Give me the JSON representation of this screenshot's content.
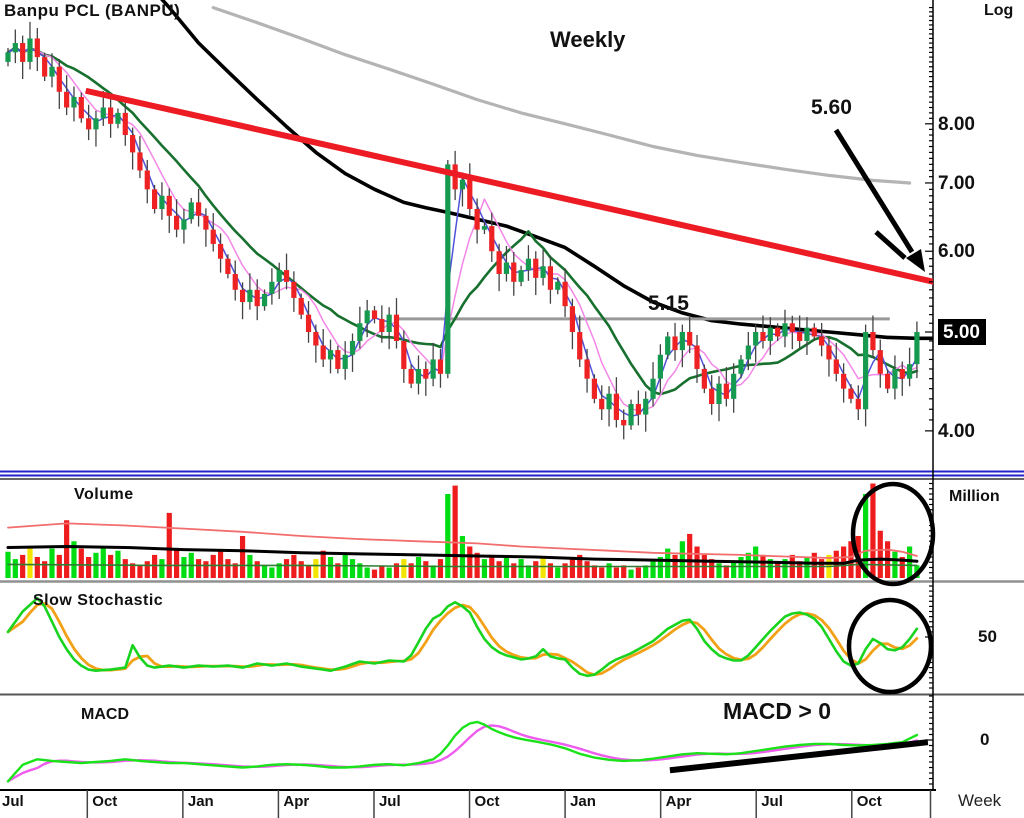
{
  "page": {
    "title": "Banpu  PCL  (BANPU)",
    "timeframe_label": "Weekly",
    "scale_label": "Log",
    "x_axis_unit": "Week"
  },
  "annotations": {
    "resistance_price": "5.60",
    "breakout_level": "5.15",
    "macd_note": "MACD > 0"
  },
  "panels": {
    "volume": {
      "label": "Volume",
      "unit": "Million"
    },
    "stochastic": {
      "label": "Slow  Stochastic",
      "mid_level": "50"
    },
    "macd": {
      "label": "MACD",
      "zero": "0"
    }
  },
  "x_axis": {
    "labels": [
      "Jul",
      "Oct",
      "Jan",
      "Apr",
      "Jul",
      "Oct",
      "Jan",
      "Apr",
      "Jul",
      "Oct"
    ],
    "unit": "Week",
    "weeks_per_quarter": 13
  },
  "colors": {
    "candle_up": "#169a4f",
    "candle_down": "#ee2222",
    "wick": "#444444",
    "vol_up": "#00dd12",
    "vol_down": "#ee1c1c",
    "vol_flat": "#f2e500",
    "ma_short": "#4f52d9",
    "ma_medium": "#f486e8",
    "ma_long": "#17702e",
    "ma_40w": "#000000",
    "ma_200w": "#b4b4b4",
    "trendline": "#ed1c24",
    "level_line": "#999999",
    "stoch_k": "#19d41f",
    "stoch_d": "#f2a117",
    "macd_line": "#1ae31a",
    "macd_signal": "#ee5bee",
    "separator_blue": "#2121c8"
  },
  "chart_data": [
    {
      "type": "candlestick",
      "title": "Banpu PCL (BANPU)",
      "timeframe": "Weekly",
      "y_axis": {
        "scale": "log",
        "tick_values": [
          8,
          7,
          6,
          5,
          4
        ],
        "tick_labels": [
          "8.00",
          "7.00",
          "6.00",
          "5.00",
          "4.00"
        ],
        "highlighted_label": "5.00",
        "unit_label": "Log"
      },
      "first_open": 9.2,
      "weekly_closes": [
        9.4,
        9.6,
        9.2,
        9.7,
        9.3,
        8.9,
        9.1,
        8.6,
        8.3,
        8.5,
        8.1,
        7.9,
        8.1,
        8.3,
        8.0,
        8.2,
        7.8,
        7.5,
        7.2,
        6.9,
        6.6,
        6.8,
        6.5,
        6.3,
        6.45,
        6.7,
        6.5,
        6.3,
        6.1,
        5.9,
        5.7,
        5.5,
        5.35,
        5.5,
        5.3,
        5.45,
        5.6,
        5.75,
        5.6,
        5.4,
        5.2,
        5.0,
        4.85,
        4.7,
        4.8,
        4.6,
        4.75,
        4.9,
        5.1,
        5.25,
        5.15,
        5.0,
        5.2,
        4.9,
        4.6,
        4.45,
        4.6,
        4.5,
        4.7,
        4.55,
        7.3,
        6.9,
        7.05,
        6.6,
        6.3,
        6.35,
        6.0,
        5.7,
        5.85,
        5.6,
        5.75,
        5.9,
        5.65,
        5.8,
        5.5,
        5.6,
        5.3,
        5.0,
        4.7,
        4.5,
        4.3,
        4.2,
        4.35,
        4.1,
        4.05,
        4.25,
        4.15,
        4.3,
        4.5,
        4.75,
        4.95,
        4.8,
        5.0,
        4.85,
        4.6,
        4.4,
        4.25,
        4.45,
        4.3,
        4.55,
        4.7,
        4.85,
        5.0,
        4.9,
        5.05,
        4.95,
        5.1,
        5.0,
        4.9,
        5.05,
        4.95,
        4.85,
        4.7,
        4.55,
        4.4,
        4.3,
        4.2,
        5.0,
        4.8,
        4.55,
        4.4,
        4.6,
        4.5,
        4.65,
        5.0
      ],
      "overlays": {
        "short_ma_period": 3,
        "medium_ma_period": 6,
        "long_ma_period": 12,
        "ma_black_40w": [
          [
            18,
            11.2
          ],
          [
            22,
            10.4
          ],
          [
            26,
            9.6
          ],
          [
            30,
            9.0
          ],
          [
            34,
            8.45
          ],
          [
            38,
            7.95
          ],
          [
            42,
            7.5
          ],
          [
            46,
            7.15
          ],
          [
            50,
            6.9
          ],
          [
            54,
            6.7
          ],
          [
            57,
            6.62
          ],
          [
            60,
            6.55
          ],
          [
            64,
            6.45
          ],
          [
            68,
            6.35
          ],
          [
            72,
            6.2
          ],
          [
            76,
            6.05
          ],
          [
            80,
            5.8
          ],
          [
            84,
            5.55
          ],
          [
            88,
            5.35
          ],
          [
            92,
            5.22
          ],
          [
            96,
            5.13
          ],
          [
            100,
            5.09
          ],
          [
            104,
            5.06
          ],
          [
            108,
            5.03
          ],
          [
            112,
            5.0
          ],
          [
            116,
            4.97
          ],
          [
            120,
            4.94
          ],
          [
            124,
            4.93
          ],
          [
            126,
            4.93
          ]
        ],
        "ma_gray_200w": [
          [
            28,
            10.4
          ],
          [
            34,
            10.05
          ],
          [
            40,
            9.7
          ],
          [
            46,
            9.35
          ],
          [
            52,
            9.05
          ],
          [
            58,
            8.75
          ],
          [
            64,
            8.45
          ],
          [
            70,
            8.2
          ],
          [
            76,
            8.0
          ],
          [
            82,
            7.8
          ],
          [
            88,
            7.6
          ],
          [
            94,
            7.45
          ],
          [
            100,
            7.33
          ],
          [
            106,
            7.22
          ],
          [
            112,
            7.12
          ],
          [
            118,
            7.04
          ],
          [
            123,
            7.0
          ]
        ],
        "downtrend_line": {
          "from_week": 10.6,
          "from_price": 8.62,
          "to_week": 126.3,
          "to_price": 5.6,
          "label": "5.60"
        },
        "horizontal_line": {
          "price": 5.15,
          "from_week": 52.8,
          "to_week": 120.3,
          "label": "5.15"
        }
      }
    },
    {
      "type": "bar",
      "title": "Volume",
      "unit": "Million",
      "values": [
        25,
        18,
        22,
        30,
        20,
        16,
        28,
        22,
        55,
        35,
        28,
        20,
        24,
        30,
        22,
        26,
        18,
        14,
        12,
        16,
        22,
        18,
        62,
        28,
        20,
        24,
        18,
        16,
        22,
        26,
        18,
        14,
        40,
        22,
        16,
        12,
        10,
        14,
        18,
        22,
        16,
        12,
        18,
        26,
        20,
        14,
        24,
        18,
        14,
        10,
        8,
        12,
        10,
        14,
        18,
        14,
        20,
        16,
        12,
        18,
        80,
        88,
        40,
        30,
        24,
        18,
        22,
        16,
        20,
        14,
        18,
        12,
        16,
        20,
        14,
        10,
        14,
        18,
        22,
        16,
        12,
        10,
        14,
        10,
        12,
        8,
        10,
        12,
        16,
        20,
        28,
        22,
        35,
        42,
        30,
        22,
        18,
        14,
        12,
        16,
        20,
        24,
        30,
        22,
        18,
        14,
        18,
        22,
        16,
        20,
        24,
        18,
        22,
        26,
        30,
        35,
        40,
        80,
        90,
        45,
        35,
        25,
        20,
        30,
        12
      ],
      "yellow_weeks": [
        3,
        42,
        54,
        73,
        112
      ],
      "ma_fast_red": [
        [
          0,
          48
        ],
        [
          8,
          52
        ],
        [
          16,
          50
        ],
        [
          24,
          47
        ],
        [
          32,
          44
        ],
        [
          40,
          40
        ],
        [
          48,
          37
        ],
        [
          56,
          35
        ],
        [
          60,
          34
        ],
        [
          64,
          33
        ],
        [
          70,
          30
        ],
        [
          76,
          28
        ],
        [
          82,
          26
        ],
        [
          88,
          24
        ],
        [
          94,
          23
        ],
        [
          100,
          22
        ],
        [
          104,
          21
        ],
        [
          108,
          20
        ],
        [
          112,
          19
        ],
        [
          115,
          20
        ],
        [
          117,
          26
        ],
        [
          120,
          27
        ],
        [
          122,
          25
        ],
        [
          124,
          21
        ]
      ],
      "ma_slow_black": [
        [
          0,
          29
        ],
        [
          8,
          30
        ],
        [
          16,
          29
        ],
        [
          24,
          27
        ],
        [
          32,
          26
        ],
        [
          40,
          24
        ],
        [
          48,
          23
        ],
        [
          56,
          22
        ],
        [
          64,
          21
        ],
        [
          72,
          20
        ],
        [
          80,
          18
        ],
        [
          88,
          17
        ],
        [
          96,
          16
        ],
        [
          104,
          15
        ],
        [
          110,
          14
        ],
        [
          114,
          14
        ],
        [
          116,
          17
        ],
        [
          119,
          18
        ],
        [
          122,
          17
        ],
        [
          124,
          16
        ]
      ],
      "ma_green": [
        [
          0,
          13
        ],
        [
          20,
          12
        ],
        [
          40,
          12
        ],
        [
          60,
          11
        ],
        [
          80,
          11
        ],
        [
          100,
          11
        ],
        [
          112,
          11
        ],
        [
          116,
          13
        ],
        [
          124,
          12
        ]
      ]
    },
    {
      "type": "line",
      "title": "Slow Stochastic",
      "axis_mid_label": "50",
      "k_points": [
        [
          0,
          55
        ],
        [
          2,
          75
        ],
        [
          4,
          88
        ],
        [
          5,
          80
        ],
        [
          6,
          65
        ],
        [
          7,
          50
        ],
        [
          8,
          38
        ],
        [
          9,
          28
        ],
        [
          10,
          22
        ],
        [
          11,
          18
        ],
        [
          12,
          17
        ],
        [
          14,
          18
        ],
        [
          16,
          20
        ],
        [
          17,
          42
        ],
        [
          18,
          30
        ],
        [
          19,
          22
        ],
        [
          20,
          20
        ],
        [
          22,
          22
        ],
        [
          24,
          20
        ],
        [
          26,
          22
        ],
        [
          28,
          21
        ],
        [
          30,
          22
        ],
        [
          32,
          20
        ],
        [
          34,
          24
        ],
        [
          36,
          22
        ],
        [
          38,
          24
        ],
        [
          40,
          21
        ],
        [
          42,
          19
        ],
        [
          44,
          17
        ],
        [
          46,
          21
        ],
        [
          48,
          26
        ],
        [
          50,
          24
        ],
        [
          52,
          27
        ],
        [
          54,
          26
        ],
        [
          55,
          32
        ],
        [
          56,
          45
        ],
        [
          57,
          58
        ],
        [
          58,
          68
        ],
        [
          59,
          72
        ],
        [
          60,
          80
        ],
        [
          61,
          84
        ],
        [
          62,
          80
        ],
        [
          63,
          74
        ],
        [
          64,
          60
        ],
        [
          65,
          48
        ],
        [
          66,
          40
        ],
        [
          67,
          35
        ],
        [
          68,
          32
        ],
        [
          69,
          30
        ],
        [
          70,
          28
        ],
        [
          71,
          29
        ],
        [
          72,
          31
        ],
        [
          73,
          38
        ],
        [
          74,
          31
        ],
        [
          75,
          29
        ],
        [
          76,
          28
        ],
        [
          77,
          20
        ],
        [
          78,
          14
        ],
        [
          79,
          12
        ],
        [
          80,
          13
        ],
        [
          81,
          18
        ],
        [
          82,
          24
        ],
        [
          83,
          28
        ],
        [
          84,
          31
        ],
        [
          85,
          34
        ],
        [
          86,
          38
        ],
        [
          87,
          42
        ],
        [
          88,
          46
        ],
        [
          89,
          52
        ],
        [
          90,
          58
        ],
        [
          91,
          62
        ],
        [
          92,
          66
        ],
        [
          93,
          67
        ],
        [
          94,
          58
        ],
        [
          95,
          46
        ],
        [
          96,
          38
        ],
        [
          97,
          32
        ],
        [
          98,
          29
        ],
        [
          99,
          27
        ],
        [
          100,
          27
        ],
        [
          101,
          32
        ],
        [
          102,
          40
        ],
        [
          103,
          48
        ],
        [
          104,
          56
        ],
        [
          105,
          63
        ],
        [
          106,
          70
        ],
        [
          107,
          73
        ],
        [
          108,
          74
        ],
        [
          109,
          72
        ],
        [
          110,
          68
        ],
        [
          111,
          60
        ],
        [
          112,
          48
        ],
        [
          113,
          36
        ],
        [
          114,
          26
        ],
        [
          115,
          22
        ],
        [
          116,
          24
        ],
        [
          117,
          38
        ],
        [
          118,
          48
        ],
        [
          119,
          44
        ],
        [
          120,
          38
        ],
        [
          121,
          37
        ],
        [
          122,
          40
        ],
        [
          123,
          48
        ],
        [
          124,
          58
        ]
      ],
      "d_derivation": "sma3_of_k"
    },
    {
      "type": "line",
      "title": "MACD",
      "zero_label": "0",
      "macd_points": [
        [
          0,
          -0.75
        ],
        [
          2,
          -0.45
        ],
        [
          4,
          -0.35
        ],
        [
          6,
          -0.38
        ],
        [
          8,
          -0.4
        ],
        [
          10,
          -0.42
        ],
        [
          12,
          -0.4
        ],
        [
          14,
          -0.38
        ],
        [
          16,
          -0.35
        ],
        [
          18,
          -0.38
        ],
        [
          20,
          -0.4
        ],
        [
          22,
          -0.42
        ],
        [
          24,
          -0.42
        ],
        [
          26,
          -0.44
        ],
        [
          28,
          -0.46
        ],
        [
          30,
          -0.48
        ],
        [
          32,
          -0.5
        ],
        [
          34,
          -0.48
        ],
        [
          36,
          -0.45
        ],
        [
          38,
          -0.44
        ],
        [
          40,
          -0.45
        ],
        [
          42,
          -0.47
        ],
        [
          44,
          -0.5
        ],
        [
          46,
          -0.5
        ],
        [
          48,
          -0.48
        ],
        [
          50,
          -0.45
        ],
        [
          52,
          -0.44
        ],
        [
          54,
          -0.46
        ],
        [
          56,
          -0.42
        ],
        [
          58,
          -0.35
        ],
        [
          59,
          -0.25
        ],
        [
          60,
          -0.1
        ],
        [
          61,
          0.08
        ],
        [
          62,
          0.22
        ],
        [
          63,
          0.3
        ],
        [
          64,
          0.33
        ],
        [
          65,
          0.28
        ],
        [
          66,
          0.2
        ],
        [
          67,
          0.14
        ],
        [
          68,
          0.09
        ],
        [
          69,
          0.05
        ],
        [
          70,
          0.02
        ],
        [
          72,
          -0.03
        ],
        [
          74,
          -0.08
        ],
        [
          76,
          -0.15
        ],
        [
          78,
          -0.25
        ],
        [
          80,
          -0.32
        ],
        [
          82,
          -0.36
        ],
        [
          84,
          -0.38
        ],
        [
          86,
          -0.37
        ],
        [
          88,
          -0.34
        ],
        [
          90,
          -0.3
        ],
        [
          92,
          -0.26
        ],
        [
          94,
          -0.24
        ],
        [
          96,
          -0.25
        ],
        [
          98,
          -0.26
        ],
        [
          100,
          -0.24
        ],
        [
          102,
          -0.2
        ],
        [
          104,
          -0.16
        ],
        [
          106,
          -0.12
        ],
        [
          108,
          -0.09
        ],
        [
          110,
          -0.07
        ],
        [
          112,
          -0.07
        ],
        [
          114,
          -0.09
        ],
        [
          116,
          -0.1
        ],
        [
          118,
          -0.09
        ],
        [
          120,
          -0.07
        ],
        [
          122,
          -0.04
        ],
        [
          124,
          0.09
        ]
      ],
      "signal_derivation": "sma5_of_macd",
      "uptrend_line": {
        "from_week": 90.3,
        "from_value": -0.55,
        "to_week": 125.5,
        "to_value": -0.04
      },
      "annotation": "MACD > 0"
    }
  ]
}
